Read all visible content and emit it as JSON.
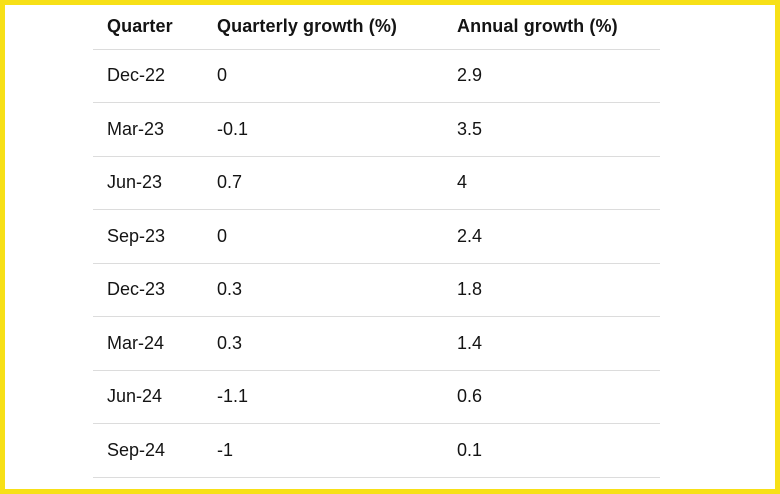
{
  "frame": {
    "highlight_border_color": "#F7E017",
    "background_color": "#ffffff"
  },
  "table": {
    "divider_color": "#dcdcdc",
    "text_color": "#141414",
    "columns": [
      {
        "label": "Quarter"
      },
      {
        "label": "Quarterly growth (%)"
      },
      {
        "label": "Annual growth (%)"
      }
    ],
    "rows": [
      {
        "quarter": "Dec-22",
        "quarterly": "0",
        "annual": "2.9"
      },
      {
        "quarter": "Mar-23",
        "quarterly": "-0.1",
        "annual": "3.5"
      },
      {
        "quarter": "Jun-23",
        "quarterly": "0.7",
        "annual": "4"
      },
      {
        "quarter": "Sep-23",
        "quarterly": "0",
        "annual": "2.4"
      },
      {
        "quarter": "Dec-23",
        "quarterly": "0.3",
        "annual": "1.8"
      },
      {
        "quarter": "Mar-24",
        "quarterly": "0.3",
        "annual": "1.4"
      },
      {
        "quarter": "Jun-24",
        "quarterly": "-1.1",
        "annual": "0.6"
      },
      {
        "quarter": "Sep-24",
        "quarterly": "-1",
        "annual": "0.1"
      }
    ]
  },
  "chart_data": {
    "type": "table",
    "title": "",
    "columns": [
      "Quarter",
      "Quarterly growth (%)",
      "Annual growth (%)"
    ],
    "rows": [
      [
        "Dec-22",
        0,
        2.9
      ],
      [
        "Mar-23",
        -0.1,
        3.5
      ],
      [
        "Jun-23",
        0.7,
        4
      ],
      [
        "Sep-23",
        0,
        2.4
      ],
      [
        "Dec-23",
        0.3,
        1.8
      ],
      [
        "Mar-24",
        0.3,
        1.4
      ],
      [
        "Jun-24",
        -1.1,
        0.6
      ],
      [
        "Sep-24",
        -1,
        0.1
      ]
    ]
  }
}
